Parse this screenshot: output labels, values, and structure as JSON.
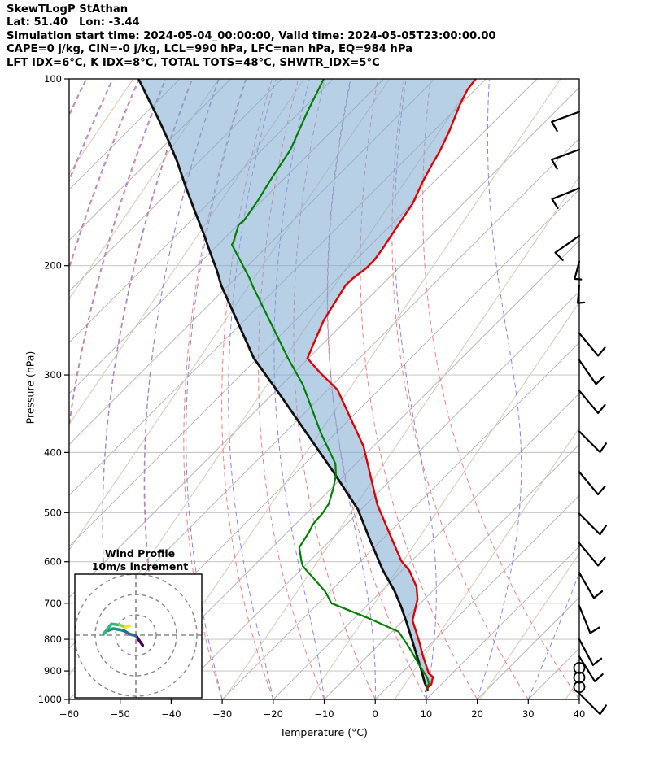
{
  "header": {
    "title": "SkewTLogP StAthan",
    "location": "Lat: 51.40   Lon: -3.44",
    "times": "Simulation start time: 2024-05-04_00:00:00, Valid time: 2024-05-05T23:00:00.00",
    "indices1": "CAPE=0 j/kg, CIN=-0 j/kg, LCL=990 hPa, LFC=nan hPa, EQ=984 hPa",
    "indices2": "LFT IDX=6°C, K IDX=8°C, TOTAL TOTS=48°C, SHWTR_IDX=5°C"
  },
  "axes": {
    "x_label": "Temperature (°C)",
    "y_label": "Pressure (hPa)",
    "x_ticks": [
      -60,
      -50,
      -40,
      -30,
      -20,
      -10,
      0,
      10,
      20,
      30,
      40
    ],
    "y_ticks": [
      100,
      200,
      300,
      400,
      500,
      600,
      700,
      800,
      900,
      1000
    ],
    "x_range_c": [
      -60,
      40
    ],
    "pressure_range_hpa": [
      100,
      1000
    ]
  },
  "inset": {
    "title_line1": "Wind Profile",
    "title_line2": "10m/s increment",
    "ring_interval_ms": 10,
    "rings_ms": [
      10,
      20,
      30
    ]
  },
  "background": {
    "isotherms": {
      "color": "#b0b0b0",
      "min": -160,
      "max": 40,
      "step": 10,
      "width": 0.9
    },
    "dry_adiabats": {
      "color": "#f37f80",
      "min_theta": -110,
      "max_theta": 40,
      "step": 10,
      "dash": "6 4",
      "width": 1.0
    },
    "moist_adiabats": {
      "color": "#8485ea",
      "min_t0": -110,
      "max_t0": 40,
      "step": 10,
      "dash": "6 4",
      "width": 1.0
    },
    "mixing_lines": {
      "color": "#d9c8b2",
      "slope_dx_per_dy_up": 0.68,
      "spacing_px": 105,
      "width": 1.0
    },
    "pressure_grid_color": "#bdbdbd",
    "shade_fill": "rgba(126,170,207,0.55)"
  },
  "chart_data": {
    "type": "line",
    "title": "SkewTLogP StAthan",
    "xlabel": "Temperature (°C)",
    "ylabel": "Pressure (hPa)",
    "note": "Skew-T log-P diagram; series points are [pressure_hPa, x_position_in_bottom_axis_degC] (45-degree skewed isotherm coordinates)",
    "series": [
      {
        "name": "temperature",
        "color": "#dd0000",
        "width": 2.4,
        "points": [
          [
            100,
            19.7
          ],
          [
            104,
            18.1
          ],
          [
            110,
            16.6
          ],
          [
            121,
            14.6
          ],
          [
            131,
            12.6
          ],
          [
            138,
            11.0
          ],
          [
            146,
            9.4
          ],
          [
            159,
            7.3
          ],
          [
            174,
            4.1
          ],
          [
            188,
            1.4
          ],
          [
            196,
            -0.2
          ],
          [
            202,
            -1.8
          ],
          [
            210,
            -4.5
          ],
          [
            215,
            -5.8
          ],
          [
            245,
            -10.1
          ],
          [
            282,
            -13.3
          ],
          [
            297,
            -10.9
          ],
          [
            317,
            -7.4
          ],
          [
            391,
            -2.3
          ],
          [
            485,
            0.4
          ],
          [
            545,
            3.0
          ],
          [
            598,
            5.1
          ],
          [
            620,
            6.7
          ],
          [
            659,
            8.1
          ],
          [
            690,
            8.3
          ],
          [
            746,
            7.3
          ],
          [
            806,
            8.6
          ],
          [
            853,
            9.4
          ],
          [
            908,
            10.5
          ],
          [
            920,
            11.3
          ],
          [
            945,
            11.0
          ],
          [
            958,
            10.2
          ]
        ]
      },
      {
        "name": "dewpoint",
        "color": "#008000",
        "width": 2.2,
        "points": [
          [
            100,
            -10.1
          ],
          [
            113,
            -13.3
          ],
          [
            130,
            -16.6
          ],
          [
            145,
            -20.4
          ],
          [
            157,
            -23.0
          ],
          [
            169,
            -25.7
          ],
          [
            172,
            -26.8
          ],
          [
            183,
            -27.8
          ],
          [
            185,
            -28.1
          ],
          [
            198,
            -26.2
          ],
          [
            210,
            -24.6
          ],
          [
            215,
            -24.1
          ],
          [
            282,
            -17.1
          ],
          [
            311,
            -14.2
          ],
          [
            373,
            -10.6
          ],
          [
            417,
            -7.8
          ],
          [
            435,
            -7.7
          ],
          [
            456,
            -8.2
          ],
          [
            484,
            -9.1
          ],
          [
            502,
            -10.4
          ],
          [
            522,
            -12.2
          ],
          [
            538,
            -13.0
          ],
          [
            569,
            -14.9
          ],
          [
            597,
            -14.5
          ],
          [
            610,
            -14.2
          ],
          [
            670,
            -9.8
          ],
          [
            700,
            -8.6
          ],
          [
            740,
            -1.3
          ],
          [
            778,
            4.6
          ],
          [
            826,
            6.7
          ],
          [
            879,
            8.6
          ],
          [
            923,
            10.2
          ],
          [
            943,
            10.5
          ],
          [
            971,
            9.9
          ]
        ]
      },
      {
        "name": "parcel",
        "color": "#111111",
        "width": 2.8,
        "points": [
          [
            100,
            -46.4
          ],
          [
            108,
            -44.4
          ],
          [
            116,
            -42.5
          ],
          [
            126,
            -40.5
          ],
          [
            136,
            -38.8
          ],
          [
            149,
            -37.2
          ],
          [
            164,
            -35.3
          ],
          [
            177,
            -33.7
          ],
          [
            190,
            -32.4
          ],
          [
            204,
            -31.0
          ],
          [
            215,
            -30.2
          ],
          [
            282,
            -23.8
          ],
          [
            327,
            -18.2
          ],
          [
            377,
            -13.0
          ],
          [
            430,
            -8.2
          ],
          [
            494,
            -3.4
          ],
          [
            554,
            -1.0
          ],
          [
            617,
            1.4
          ],
          [
            669,
            3.8
          ],
          [
            710,
            5.1
          ],
          [
            754,
            6.2
          ],
          [
            806,
            7.3
          ],
          [
            858,
            8.3
          ],
          [
            901,
            9.1
          ],
          [
            940,
            9.7
          ],
          [
            966,
            10.3
          ]
        ]
      }
    ],
    "shade_between": [
      "parcel",
      "temperature"
    ],
    "wind_barbs": [
      {
        "p": 113,
        "from_deg": 250,
        "speed_ms": 10
      },
      {
        "p": 130,
        "from_deg": 250,
        "speed_ms": 10
      },
      {
        "p": 150,
        "from_deg": 248,
        "speed_ms": 10
      },
      {
        "p": 179,
        "from_deg": 235,
        "speed_ms": 10
      },
      {
        "p": 197,
        "from_deg": 195,
        "speed_ms": 5
      },
      {
        "p": 215,
        "from_deg": 185,
        "speed_ms": 5
      },
      {
        "p": 257,
        "from_deg": 140,
        "speed_ms": 10
      },
      {
        "p": 284,
        "from_deg": 145,
        "speed_ms": 10
      },
      {
        "p": 318,
        "from_deg": 140,
        "speed_ms": 10
      },
      {
        "p": 370,
        "from_deg": 135,
        "speed_ms": 10
      },
      {
        "p": 430,
        "from_deg": 140,
        "speed_ms": 10
      },
      {
        "p": 502,
        "from_deg": 135,
        "speed_ms": 10
      },
      {
        "p": 560,
        "from_deg": 140,
        "speed_ms": 10
      },
      {
        "p": 625,
        "from_deg": 150,
        "speed_ms": 10
      },
      {
        "p": 707,
        "from_deg": 158,
        "speed_ms": 10
      },
      {
        "p": 800,
        "from_deg": 152,
        "speed_ms": 10
      },
      {
        "p": 853,
        "from_deg": 148,
        "speed_ms": 10
      },
      {
        "p": 890,
        "calm": true
      },
      {
        "p": 922,
        "calm": true
      },
      {
        "p": 955,
        "calm": true
      },
      {
        "p": 978,
        "from_deg": 135,
        "speed_ms": 10
      }
    ],
    "hodograph": {
      "units": "m/s",
      "note": "x = eastward px component, y = screen-down component",
      "trace": [
        {
          "color": "#440154",
          "pts": [
            [
              3.3,
              5.0
            ],
            [
              1.2,
              2.0
            ],
            [
              0.2,
              0.3
            ]
          ]
        },
        {
          "color": "#31688e",
          "pts": [
            [
              0.2,
              0.3
            ],
            [
              -3.0,
              -0.5
            ],
            [
              -5.5,
              -2.0
            ],
            [
              -7.0,
              -2.5
            ]
          ]
        },
        {
          "color": "#21918c",
          "pts": [
            [
              -7.0,
              -2.5
            ],
            [
              -11.0,
              -3.2
            ],
            [
              -14.5,
              -2.0
            ],
            [
              -16.0,
              -0.5
            ]
          ]
        },
        {
          "color": "#35b779",
          "pts": [
            [
              -16.0,
              -0.5
            ],
            [
              -12.0,
              -5.5
            ],
            [
              -8.0,
              -5.0
            ]
          ]
        },
        {
          "color": "#90d743",
          "pts": [
            [
              -8.0,
              -5.0
            ],
            [
              -5.0,
              -4.0
            ]
          ]
        },
        {
          "color": "#fde725",
          "pts": [
            [
              -5.0,
              -4.0
            ],
            [
              -3.0,
              -4.6
            ]
          ]
        }
      ]
    }
  }
}
